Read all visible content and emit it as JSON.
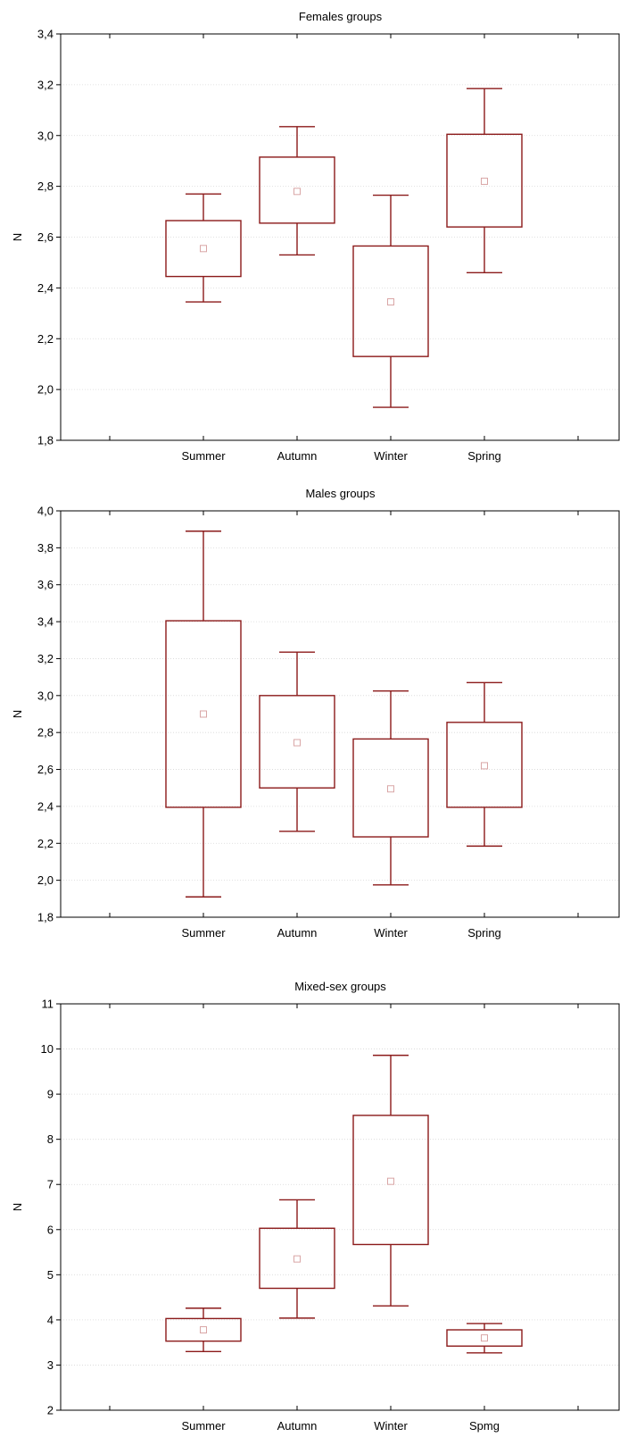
{
  "colors": {
    "box": "#8b1a1a",
    "mean_marker": "#d9a6a6",
    "grid": "#d8d8d8",
    "axis": "#000000"
  },
  "chart_data": [
    {
      "type": "box",
      "title": "Females groups",
      "ylabel": "N",
      "xlabel": "",
      "ylim": [
        1.8,
        3.4
      ],
      "yticks": [
        1.8,
        2.0,
        2.2,
        2.4,
        2.6,
        2.8,
        3.0,
        3.2,
        3.4
      ],
      "ytick_labels": [
        "1,8",
        "2,0",
        "2,2",
        "2,4",
        "2,6",
        "2,8",
        "3,0",
        "3,2",
        "3,4"
      ],
      "grid": true,
      "categories": [
        "Summer",
        "Autumn",
        "Winter",
        "Spring"
      ],
      "boxes": [
        {
          "mean": 2.555,
          "box_low": 2.445,
          "box_high": 2.665,
          "whisker_low": 2.345,
          "whisker_high": 2.77
        },
        {
          "mean": 2.78,
          "box_low": 2.655,
          "box_high": 2.915,
          "whisker_low": 2.53,
          "whisker_high": 3.035
        },
        {
          "mean": 2.345,
          "box_low": 2.13,
          "box_high": 2.565,
          "whisker_low": 1.93,
          "whisker_high": 2.765
        },
        {
          "mean": 2.82,
          "box_low": 2.64,
          "box_high": 3.005,
          "whisker_low": 2.46,
          "whisker_high": 3.185
        }
      ]
    },
    {
      "type": "box",
      "title": "Males groups",
      "ylabel": "N",
      "xlabel": "",
      "ylim": [
        1.8,
        4.0
      ],
      "yticks": [
        1.8,
        2.0,
        2.2,
        2.4,
        2.6,
        2.8,
        3.0,
        3.2,
        3.4,
        3.6,
        3.8,
        4.0
      ],
      "ytick_labels": [
        "1,8",
        "2,0",
        "2,2",
        "2,4",
        "2,6",
        "2,8",
        "3,0",
        "3,2",
        "3,4",
        "3,6",
        "3,8",
        "4,0"
      ],
      "grid": true,
      "categories": [
        "Summer",
        "Autumn",
        "Winter",
        "Spring"
      ],
      "boxes": [
        {
          "mean": 2.9,
          "box_low": 2.395,
          "box_high": 3.405,
          "whisker_low": 1.91,
          "whisker_high": 3.89
        },
        {
          "mean": 2.745,
          "box_low": 2.5,
          "box_high": 3.0,
          "whisker_low": 2.265,
          "whisker_high": 3.235
        },
        {
          "mean": 2.495,
          "box_low": 2.235,
          "box_high": 2.765,
          "whisker_low": 1.975,
          "whisker_high": 3.025
        },
        {
          "mean": 2.62,
          "box_low": 2.395,
          "box_high": 2.855,
          "whisker_low": 2.185,
          "whisker_high": 3.07
        }
      ]
    },
    {
      "type": "box",
      "title": "Mixed-sex groups",
      "ylabel": "N",
      "xlabel": "",
      "ylim": [
        2,
        11
      ],
      "yticks": [
        2,
        3,
        4,
        5,
        6,
        7,
        8,
        9,
        10,
        11
      ],
      "ytick_labels": [
        "2",
        "3",
        "4",
        "5",
        "6",
        "7",
        "8",
        "9",
        "10",
        "11"
      ],
      "grid": true,
      "categories": [
        "Summer",
        "Autumn",
        "Winter",
        "Spmg"
      ],
      "boxes": [
        {
          "mean": 3.78,
          "box_low": 3.53,
          "box_high": 4.03,
          "whisker_low": 3.3,
          "whisker_high": 4.26
        },
        {
          "mean": 5.35,
          "box_low": 4.7,
          "box_high": 6.03,
          "whisker_low": 4.04,
          "whisker_high": 6.66
        },
        {
          "mean": 7.07,
          "box_low": 5.67,
          "box_high": 8.53,
          "whisker_low": 4.31,
          "whisker_high": 9.86
        },
        {
          "mean": 3.6,
          "box_low": 3.42,
          "box_high": 3.78,
          "whisker_low": 3.27,
          "whisker_high": 3.92
        }
      ]
    }
  ]
}
